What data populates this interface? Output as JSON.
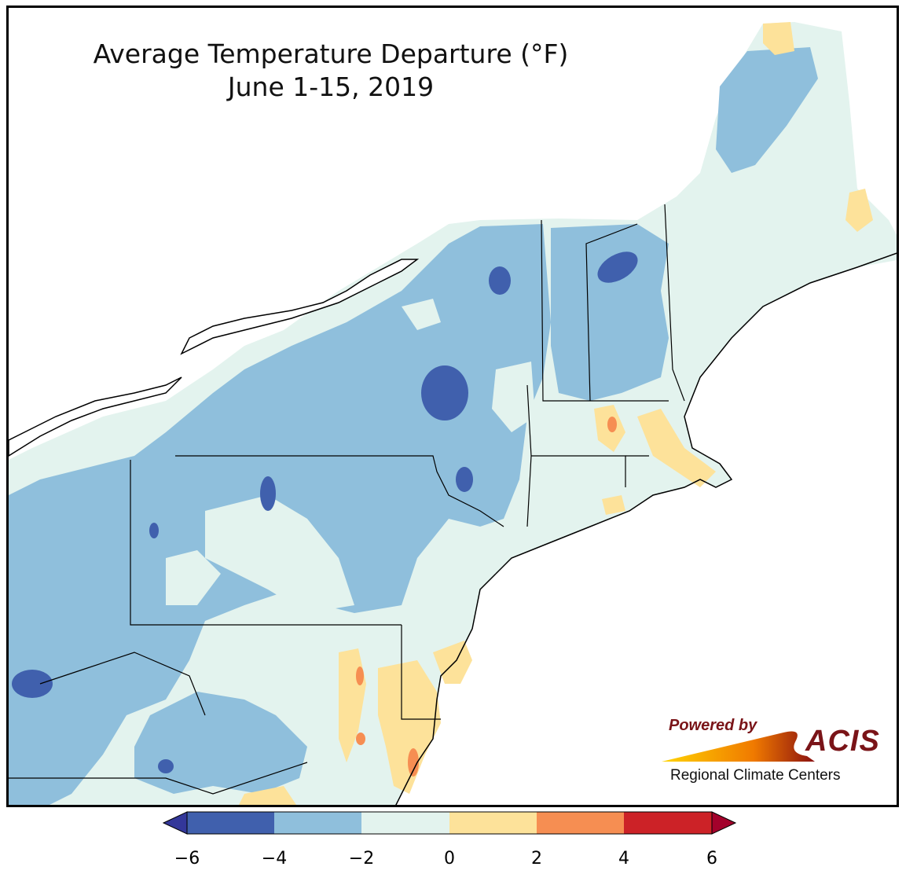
{
  "title": {
    "line1": "Average Temperature Departure (°F)",
    "line2": "June 1-15, 2019"
  },
  "logo": {
    "powered_by": "Powered by",
    "acis": "ACIS",
    "regional": "Regional Climate Centers"
  },
  "colors": {
    "band_-6_-4": "#4060ad",
    "band_-4_-2": "#8fbfdc",
    "band_-2_0": "#e3f3ee",
    "band_0_2": "#fde29a",
    "band_2_4": "#f68e52",
    "band_4_6": "#cc2227",
    "below_min": "#33379a",
    "above_max": "#a3012b"
  },
  "colorbar": {
    "ticks": [
      "−6",
      "−4",
      "−2",
      "0",
      "2",
      "4",
      "6"
    ]
  }
}
